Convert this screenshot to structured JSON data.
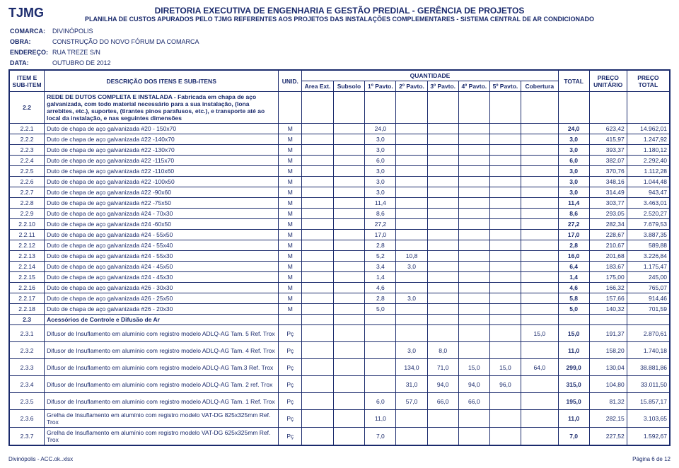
{
  "logo": "TJMG",
  "header": {
    "line1": "DIRETORIA EXECUTIVA DE ENGENHARIA E GESTÃO PREDIAL - GERÊNCIA DE PROJETOS",
    "line2": "PLANILHA DE CUSTOS APURADOS PELO TJMG REFERENTES AOS PROJETOS DAS INSTALAÇÕES COMPLEMENTARES - SISTEMA CENTRAL DE AR CONDICIONADO"
  },
  "meta": {
    "comarca_label": "COMARCA:",
    "comarca": "DIVINÓPOLIS",
    "obra_label": "OBRA:",
    "obra": "CONSTRUÇÃO DO NOVO FÓRUM DA COMARCA",
    "end_label": "ENDEREÇO:",
    "end": "RUA TREZE S/N",
    "data_label": "DATA:",
    "data": "OUTUBRO DE 2012"
  },
  "columns": {
    "item": "ITEM E SUB-ITEM",
    "desc": "DESCRIÇÃO DOS ITENS E SUB-ITENS",
    "unid": "UNID.",
    "qgroup": "QUANTIDADE",
    "q": [
      "Area Ext.",
      "Subsolo",
      "1º Pavto.",
      "2º Pavto.",
      "3º Pavto.",
      "4º Pavto.",
      "5º Pavto.",
      "Cobertura"
    ],
    "total": "TOTAL",
    "pu": "PREÇO UNITÁRIO",
    "pt": "PREÇO TOTAL"
  },
  "rows": [
    {
      "id": "2.2",
      "desc": "REDE DE DUTOS COMPLETA E INSTALADA - Fabricada em chapa de aço galvanizada, com todo material necessário para a sua instalação, (lona arrebites, etc.), suportes, (tirantes pinos parafusos, etc.), e transporte até ao local da instalação, e nas seguintes dimensões",
      "unid": "",
      "q": [
        "",
        "",
        "",
        "",
        "",
        "",
        "",
        ""
      ],
      "total": "",
      "pu": "",
      "pt": "",
      "tall": true,
      "bold": true
    },
    {
      "id": "2.2.1",
      "desc": "Duto de chapa de aço galvanizada #20 - 150x70",
      "unid": "M",
      "q": [
        "",
        "",
        "24,0",
        "",
        "",
        "",
        "",
        ""
      ],
      "total": "24,0",
      "pu": "623,42",
      "pt": "14.962,01"
    },
    {
      "id": "2.2.2",
      "desc": "Duto de chapa de aço galvanizada #22 -140x70",
      "unid": "M",
      "q": [
        "",
        "",
        "3,0",
        "",
        "",
        "",
        "",
        ""
      ],
      "total": "3,0",
      "pu": "415,97",
      "pt": "1.247,92"
    },
    {
      "id": "2.2.3",
      "desc": "Duto de chapa de aço galvanizada #22 -130x70",
      "unid": "M",
      "q": [
        "",
        "",
        "3,0",
        "",
        "",
        "",
        "",
        ""
      ],
      "total": "3,0",
      "pu": "393,37",
      "pt": "1.180,12"
    },
    {
      "id": "2.2.4",
      "desc": "Duto de chapa de aço galvanizada #22 -115x70",
      "unid": "M",
      "q": [
        "",
        "",
        "6,0",
        "",
        "",
        "",
        "",
        ""
      ],
      "total": "6,0",
      "pu": "382,07",
      "pt": "2.292,40"
    },
    {
      "id": "2.2.5",
      "desc": "Duto de chapa de aço galvanizada #22 -110x60",
      "unid": "M",
      "q": [
        "",
        "",
        "3,0",
        "",
        "",
        "",
        "",
        ""
      ],
      "total": "3,0",
      "pu": "370,76",
      "pt": "1.112,28"
    },
    {
      "id": "2.2.6",
      "desc": "Duto de chapa de aço galvanizada #22 -100x50",
      "unid": "M",
      "q": [
        "",
        "",
        "3,0",
        "",
        "",
        "",
        "",
        ""
      ],
      "total": "3,0",
      "pu": "348,16",
      "pt": "1.044,48"
    },
    {
      "id": "2.2.7",
      "desc": "Duto de chapa de aço galvanizada #22 -90x60",
      "unid": "M",
      "q": [
        "",
        "",
        "3,0",
        "",
        "",
        "",
        "",
        ""
      ],
      "total": "3,0",
      "pu": "314,49",
      "pt": "943,47"
    },
    {
      "id": "2.2.8",
      "desc": "Duto de chapa de aço galvanizada #22 -75x50",
      "unid": "M",
      "q": [
        "",
        "",
        "11,4",
        "",
        "",
        "",
        "",
        ""
      ],
      "total": "11,4",
      "pu": "303,77",
      "pt": "3.463,01"
    },
    {
      "id": "2.2.9",
      "desc": "Duto de chapa de aço galvanizada #24 - 70x30",
      "unid": "M",
      "q": [
        "",
        "",
        "8,6",
        "",
        "",
        "",
        "",
        ""
      ],
      "total": "8,6",
      "pu": "293,05",
      "pt": "2.520,27"
    },
    {
      "id": "2.2.10",
      "desc": "Duto de chapa de aço galvanizada #24 -60x50",
      "unid": "M",
      "q": [
        "",
        "",
        "27,2",
        "",
        "",
        "",
        "",
        ""
      ],
      "total": "27,2",
      "pu": "282,34",
      "pt": "7.679,53"
    },
    {
      "id": "2.2.11",
      "desc": "Duto de chapa de aço galvanizada #24 - 55x50",
      "unid": "M",
      "q": [
        "",
        "",
        "17,0",
        "",
        "",
        "",
        "",
        ""
      ],
      "total": "17,0",
      "pu": "228,67",
      "pt": "3.887,35"
    },
    {
      "id": "2.2.12",
      "desc": "Duto de chapa de aço galvanizada #24 - 55x40",
      "unid": "M",
      "q": [
        "",
        "",
        "2,8",
        "",
        "",
        "",
        "",
        ""
      ],
      "total": "2,8",
      "pu": "210,67",
      "pt": "589,88"
    },
    {
      "id": "2.2.13",
      "desc": "Duto de chapa de aço galvanizada #24 - 55x30",
      "unid": "M",
      "q": [
        "",
        "",
        "5,2",
        "10,8",
        "",
        "",
        "",
        ""
      ],
      "total": "16,0",
      "pu": "201,68",
      "pt": "3.226,84"
    },
    {
      "id": "2.2.14",
      "desc": "Duto de chapa de aço galvanizada #24 - 45x50",
      "unid": "M",
      "q": [
        "",
        "",
        "3,4",
        "3,0",
        "",
        "",
        "",
        ""
      ],
      "total": "6,4",
      "pu": "183,67",
      "pt": "1.175,47"
    },
    {
      "id": "2.2.15",
      "desc": "Duto de chapa de aço galvanizada #24 - 45x30",
      "unid": "M",
      "q": [
        "",
        "",
        "1,4",
        "",
        "",
        "",
        "",
        ""
      ],
      "total": "1,4",
      "pu": "175,00",
      "pt": "245,00"
    },
    {
      "id": "2.2.16",
      "desc": "Duto de chapa de aço galvanizada #26 - 30x30",
      "unid": "M",
      "q": [
        "",
        "",
        "4,6",
        "",
        "",
        "",
        "",
        ""
      ],
      "total": "4,6",
      "pu": "166,32",
      "pt": "765,07"
    },
    {
      "id": "2.2.17",
      "desc": "Duto de chapa de aço galvanizada #26 - 25x50",
      "unid": "M",
      "q": [
        "",
        "",
        "2,8",
        "3,0",
        "",
        "",
        "",
        ""
      ],
      "total": "5,8",
      "pu": "157,66",
      "pt": "914,46"
    },
    {
      "id": "2.2.18",
      "desc": "Duto de chapa de aço galvanizada #26 - 20x30",
      "unid": "M",
      "q": [
        "",
        "",
        "5,0",
        "",
        "",
        "",
        "",
        ""
      ],
      "total": "5,0",
      "pu": "140,32",
      "pt": "701,59"
    },
    {
      "id": "2.3",
      "desc": "Acessórios de Controle e Difusão de Ar",
      "unid": "",
      "q": [
        "",
        "",
        "",
        "",
        "",
        "",
        "",
        ""
      ],
      "total": "",
      "pu": "",
      "pt": "",
      "bold": true
    },
    {
      "id": "2.3.1",
      "desc": "Difusor de Insuflamento em alumínio com registro modelo ADLQ-AG Tam. 5 Ref. Trox",
      "unid": "Pç",
      "q": [
        "",
        "",
        "",
        "",
        "",
        "",
        "",
        "15,0"
      ],
      "total": "15,0",
      "pu": "191,37",
      "pt": "2.870,61",
      "med": true
    },
    {
      "id": "2.3.2",
      "desc": "Difusor de Insuflamento em alumínio com registro modelo ADLQ-AG Tam. 4 Ref. Trox",
      "unid": "Pç",
      "q": [
        "",
        "",
        "",
        "3,0",
        "8,0",
        "",
        "",
        ""
      ],
      "total": "11,0",
      "pu": "158,20",
      "pt": "1.740,18",
      "med": true
    },
    {
      "id": "2.3.3",
      "desc": "Difusor de Insuflamento em alumínio com registro modelo ADLQ-AG Tam.3 Ref. Trox",
      "unid": "Pç",
      "q": [
        "",
        "",
        "",
        "134,0",
        "71,0",
        "15,0",
        "15,0",
        "64,0"
      ],
      "total": "299,0",
      "pu": "130,04",
      "pt": "38.881,86",
      "med": true
    },
    {
      "id": "2.3.4",
      "desc": "Difusor de Insuflamento em alumínio com registro modelo ADLQ-AG Tam. 2 ref. Trox",
      "unid": "Pç",
      "q": [
        "",
        "",
        "",
        "31,0",
        "94,0",
        "94,0",
        "96,0",
        ""
      ],
      "total": "315,0",
      "pu": "104,80",
      "pt": "33.011,50",
      "med": true
    },
    {
      "id": "2.3.5",
      "desc": "Difusor de Insuflamento em alumínio com registro modelo ADLQ-AG Tam. 1 Ref. Trox",
      "unid": "Pç",
      "q": [
        "",
        "",
        "6,0",
        "57,0",
        "66,0",
        "66,0",
        "",
        ""
      ],
      "total": "195,0",
      "pu": "81,32",
      "pt": "15.857,17",
      "med": true
    },
    {
      "id": "2.3.6",
      "desc": "Grelha de Insuflamento em alumínio com registro modelo VAT-DG 825x325mm Ref. Trox",
      "unid": "Pç",
      "q": [
        "",
        "",
        "11,0",
        "",
        "",
        "",
        "",
        ""
      ],
      "total": "11,0",
      "pu": "282,15",
      "pt": "3.103,65",
      "med": true
    },
    {
      "id": "2.3.7",
      "desc": "Grelha de Insuflamento em alumínio com registro modelo VAT-DG 625x325mm Ref. Trox",
      "unid": "Pç",
      "q": [
        "",
        "",
        "7,0",
        "",
        "",
        "",
        "",
        ""
      ],
      "total": "7,0",
      "pu": "227,52",
      "pt": "1.592,67",
      "med": true
    }
  ],
  "footer": {
    "left": "Divinópolis - ACC.ok..xlsx",
    "right": "Página 6 de 12"
  }
}
